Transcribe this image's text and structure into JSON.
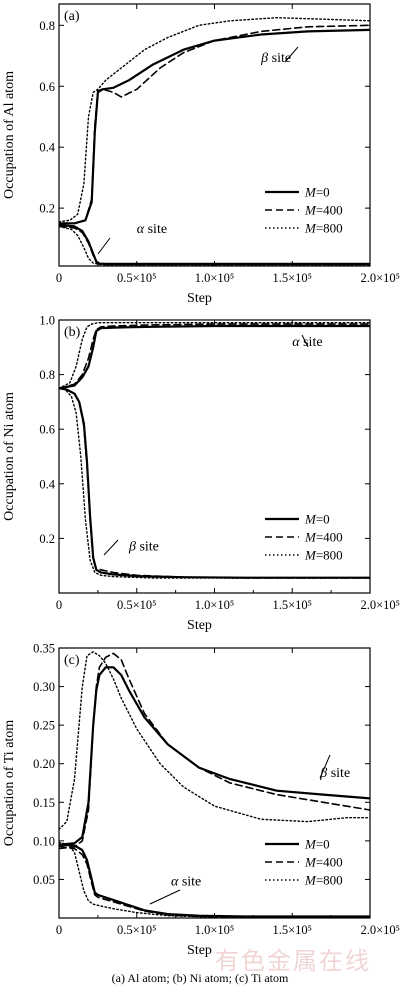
{
  "caption": "(a) Al atom; (b) Ni atom; (c) Ti atom",
  "watermark": "有色金属在线",
  "colors": {
    "line": "#000000",
    "background": "#ffffff",
    "watermark": "#e6b3b3"
  },
  "chart_data": [
    {
      "type": "line",
      "panel": "(a)",
      "xlabel": "Step",
      "ylabel": "Occupation of Al atom",
      "xlim": [
        0,
        200000
      ],
      "ylim": [
        0.01,
        0.87
      ],
      "x_ticks": [
        0,
        50000,
        100000,
        150000,
        200000
      ],
      "x_tick_labels": [
        "0",
        "0.5×10⁵",
        "1.0×10⁵",
        "1.5×10⁵",
        "2.0×10⁵"
      ],
      "y_ticks": [
        0.2,
        0.4,
        0.6,
        0.8
      ],
      "y_tick_labels": [
        "0.2",
        "0.4",
        "0.6",
        "0.8"
      ],
      "legend": {
        "position": "lower-right",
        "entries": [
          "M=0",
          "M=400",
          "M=800"
        ],
        "styles": [
          "solid",
          "dashed",
          "dotted"
        ]
      },
      "annotations": [
        {
          "text": "β site",
          "x": 130000,
          "y": 0.68
        },
        {
          "text": "α site",
          "x": 50000,
          "y": 0.118
        }
      ],
      "series": [
        {
          "name": "M=0",
          "style": "solid",
          "x": [
            0,
            10000,
            17000,
            21000,
            23000,
            25000,
            28000,
            35000,
            45000,
            60000,
            80000,
            100000,
            130000,
            160000,
            200000
          ],
          "y": [
            0.15,
            0.15,
            0.16,
            0.22,
            0.45,
            0.58,
            0.59,
            0.595,
            0.62,
            0.67,
            0.72,
            0.75,
            0.77,
            0.78,
            0.785
          ]
        },
        {
          "name": "M=400",
          "style": "dashed",
          "x": [
            0,
            10000,
            17000,
            21000,
            23000,
            25000,
            28000,
            35000,
            40000,
            50000,
            65000,
            80000,
            100000,
            130000,
            160000,
            200000
          ],
          "y": [
            0.15,
            0.15,
            0.16,
            0.23,
            0.47,
            0.585,
            0.59,
            0.58,
            0.565,
            0.59,
            0.66,
            0.71,
            0.75,
            0.78,
            0.795,
            0.8
          ]
        },
        {
          "name": "M=800",
          "style": "dotted",
          "x": [
            0,
            7000,
            12000,
            16000,
            19000,
            22000,
            25000,
            30000,
            40000,
            55000,
            70000,
            90000,
            110000,
            140000,
            170000,
            200000
          ],
          "y": [
            0.155,
            0.16,
            0.18,
            0.28,
            0.5,
            0.58,
            0.59,
            0.62,
            0.66,
            0.72,
            0.76,
            0.8,
            0.815,
            0.825,
            0.82,
            0.815
          ]
        },
        {
          "name": "M=0",
          "style": "solid",
          "x": [
            0,
            10000,
            15000,
            19000,
            22000,
            24000,
            26000,
            30000,
            60000,
            100000,
            150000,
            200000
          ],
          "y": [
            0.145,
            0.14,
            0.125,
            0.09,
            0.05,
            0.025,
            0.018,
            0.017,
            0.017,
            0.017,
            0.017,
            0.017
          ]
        },
        {
          "name": "M=400",
          "style": "dashed",
          "x": [
            0,
            10000,
            15000,
            19000,
            22000,
            24000,
            26000,
            30000,
            60000,
            100000,
            150000,
            200000
          ],
          "y": [
            0.14,
            0.135,
            0.12,
            0.085,
            0.045,
            0.022,
            0.016,
            0.015,
            0.015,
            0.015,
            0.015,
            0.015
          ]
        },
        {
          "name": "M=800",
          "style": "dotted",
          "x": [
            0,
            8000,
            12000,
            16000,
            19000,
            22000,
            26000,
            35000,
            100000,
            200000
          ],
          "y": [
            0.14,
            0.13,
            0.11,
            0.07,
            0.035,
            0.02,
            0.015,
            0.013,
            0.013,
            0.013
          ]
        }
      ]
    },
    {
      "type": "line",
      "panel": "(b)",
      "xlabel": "Step",
      "ylabel": "Occupation of Ni atom",
      "xlim": [
        0,
        200000
      ],
      "ylim": [
        0.0,
        1.0
      ],
      "x_ticks": [
        0,
        50000,
        100000,
        150000,
        200000
      ],
      "x_tick_labels": [
        "0",
        "0.5×10⁵",
        "1.0×10⁵",
        "1.5×10⁵",
        "2.0×10⁵"
      ],
      "y_ticks": [
        0.2,
        0.4,
        0.6,
        0.8,
        1.0
      ],
      "y_tick_labels": [
        "0.2",
        "0.4",
        "0.6",
        "0.8",
        "1.0"
      ],
      "legend": {
        "position": "lower-right",
        "entries": [
          "M=0",
          "M=400",
          "M=800"
        ],
        "styles": [
          "solid",
          "dashed",
          "dotted"
        ]
      },
      "annotations": [
        {
          "text": "α site",
          "x": 150000,
          "y": 0.905
        },
        {
          "text": "β site",
          "x": 45000,
          "y": 0.155
        }
      ],
      "series": [
        {
          "name": "M=0",
          "style": "solid",
          "x": [
            0,
            10000,
            15000,
            19000,
            22000,
            24000,
            27000,
            35000,
            60000,
            100000,
            150000,
            200000
          ],
          "y": [
            0.75,
            0.76,
            0.79,
            0.83,
            0.9,
            0.96,
            0.97,
            0.972,
            0.975,
            0.978,
            0.978,
            0.978
          ]
        },
        {
          "name": "M=400",
          "style": "dashed",
          "x": [
            0,
            10000,
            15000,
            19000,
            22000,
            24000,
            27000,
            35000,
            60000,
            100000,
            150000,
            200000
          ],
          "y": [
            0.75,
            0.765,
            0.8,
            0.86,
            0.93,
            0.965,
            0.975,
            0.978,
            0.982,
            0.985,
            0.985,
            0.985
          ]
        },
        {
          "name": "M=800",
          "style": "dotted",
          "x": [
            0,
            7000,
            11000,
            15000,
            18000,
            21000,
            25000,
            35000,
            60000,
            100000,
            150000,
            200000
          ],
          "y": [
            0.75,
            0.77,
            0.83,
            0.93,
            0.975,
            0.985,
            0.99,
            0.99,
            0.99,
            0.99,
            0.99,
            0.99
          ]
        },
        {
          "name": "M=0",
          "style": "solid",
          "x": [
            0,
            5000,
            10000,
            13000,
            16000,
            18000,
            20000,
            22000,
            24000,
            27000,
            35000,
            50000,
            80000,
            120000,
            200000
          ],
          "y": [
            0.75,
            0.745,
            0.73,
            0.7,
            0.62,
            0.48,
            0.28,
            0.13,
            0.085,
            0.075,
            0.068,
            0.062,
            0.058,
            0.056,
            0.056
          ]
        },
        {
          "name": "M=400",
          "style": "dashed",
          "x": [
            0,
            5000,
            10000,
            13000,
            16000,
            18000,
            20000,
            22000,
            24000,
            27000,
            35000,
            50000,
            80000,
            120000,
            200000
          ],
          "y": [
            0.75,
            0.745,
            0.73,
            0.7,
            0.61,
            0.46,
            0.27,
            0.12,
            0.09,
            0.085,
            0.075,
            0.065,
            0.058,
            0.055,
            0.055
          ]
        },
        {
          "name": "M=800",
          "style": "dotted",
          "x": [
            0,
            4000,
            8000,
            11000,
            14000,
            17000,
            20000,
            23000,
            27000,
            35000,
            60000,
            120000,
            200000
          ],
          "y": [
            0.75,
            0.745,
            0.72,
            0.66,
            0.5,
            0.27,
            0.12,
            0.075,
            0.065,
            0.06,
            0.055,
            0.055,
            0.055
          ]
        }
      ]
    },
    {
      "type": "line",
      "panel": "(c)",
      "xlabel": "Step",
      "ylabel": "Occupation of Ti atom",
      "xlim": [
        0,
        200000
      ],
      "ylim": [
        0.0,
        0.35
      ],
      "x_ticks": [
        0,
        50000,
        100000,
        150000,
        200000
      ],
      "x_tick_labels": [
        "0",
        "0.5×10⁵",
        "1.0×10⁵",
        "1.5×10⁵",
        "2.0×10⁵"
      ],
      "y_ticks": [
        0.05,
        0.1,
        0.15,
        0.2,
        0.25,
        0.3,
        0.35
      ],
      "y_tick_labels": [
        "0.05",
        "0.10",
        "0.15",
        "0.20",
        "0.25",
        "0.30",
        "0.35"
      ],
      "legend": {
        "position": "lower-right",
        "entries": [
          "M=0",
          "M=400",
          "M=800"
        ],
        "styles": [
          "solid",
          "dashed",
          "dotted"
        ]
      },
      "annotations": [
        {
          "text": "β site",
          "x": 168000,
          "y": 0.183
        },
        {
          "text": "α site",
          "x": 72000,
          "y": 0.042
        }
      ],
      "series": [
        {
          "name": "M=0",
          "style": "solid",
          "x": [
            0,
            10000,
            15000,
            19000,
            22000,
            24000,
            26000,
            30000,
            35000,
            40000,
            45000,
            55000,
            70000,
            90000,
            110000,
            140000,
            170000,
            200000
          ],
          "y": [
            0.095,
            0.097,
            0.105,
            0.15,
            0.25,
            0.295,
            0.315,
            0.325,
            0.325,
            0.315,
            0.295,
            0.26,
            0.225,
            0.195,
            0.18,
            0.165,
            0.16,
            0.155
          ]
        },
        {
          "name": "M=400",
          "style": "dashed",
          "x": [
            0,
            10000,
            15000,
            19000,
            22000,
            24000,
            26000,
            30000,
            35000,
            40000,
            45000,
            55000,
            70000,
            90000,
            110000,
            140000,
            170000,
            200000
          ],
          "y": [
            0.09,
            0.092,
            0.1,
            0.14,
            0.25,
            0.3,
            0.325,
            0.338,
            0.343,
            0.335,
            0.31,
            0.265,
            0.225,
            0.195,
            0.175,
            0.16,
            0.15,
            0.14
          ]
        },
        {
          "name": "M=800",
          "style": "dotted",
          "x": [
            0,
            5000,
            10000,
            15000,
            18000,
            22000,
            26000,
            30000,
            35000,
            40000,
            50000,
            65000,
            80000,
            100000,
            130000,
            160000,
            185000,
            200000
          ],
          "y": [
            0.115,
            0.125,
            0.18,
            0.3,
            0.34,
            0.345,
            0.34,
            0.33,
            0.31,
            0.285,
            0.245,
            0.2,
            0.17,
            0.145,
            0.128,
            0.125,
            0.13,
            0.13
          ]
        },
        {
          "name": "M=0",
          "style": "solid",
          "x": [
            0,
            10000,
            15000,
            18000,
            21000,
            23000,
            25000,
            28000,
            40000,
            55000,
            70000,
            90000,
            120000,
            150000,
            200000
          ],
          "y": [
            0.095,
            0.094,
            0.088,
            0.075,
            0.05,
            0.033,
            0.03,
            0.028,
            0.02,
            0.01,
            0.005,
            0.003,
            0.002,
            0.002,
            0.002
          ]
        },
        {
          "name": "M=400",
          "style": "dashed",
          "x": [
            0,
            10000,
            15000,
            18000,
            21000,
            23000,
            25000,
            28000,
            40000,
            55000,
            70000,
            90000,
            120000,
            150000,
            200000
          ],
          "y": [
            0.093,
            0.09,
            0.082,
            0.07,
            0.045,
            0.03,
            0.027,
            0.025,
            0.018,
            0.009,
            0.004,
            0.002,
            0.001,
            0.001,
            0.001
          ]
        },
        {
          "name": "M=800",
          "style": "dotted",
          "x": [
            0,
            6000,
            10000,
            13000,
            16000,
            19000,
            22000,
            26000,
            35000,
            50000,
            70000,
            100000,
            150000,
            200000
          ],
          "y": [
            0.098,
            0.095,
            0.085,
            0.06,
            0.035,
            0.022,
            0.018,
            0.016,
            0.012,
            0.007,
            0.003,
            0.001,
            0.001,
            0.001
          ]
        }
      ]
    }
  ]
}
